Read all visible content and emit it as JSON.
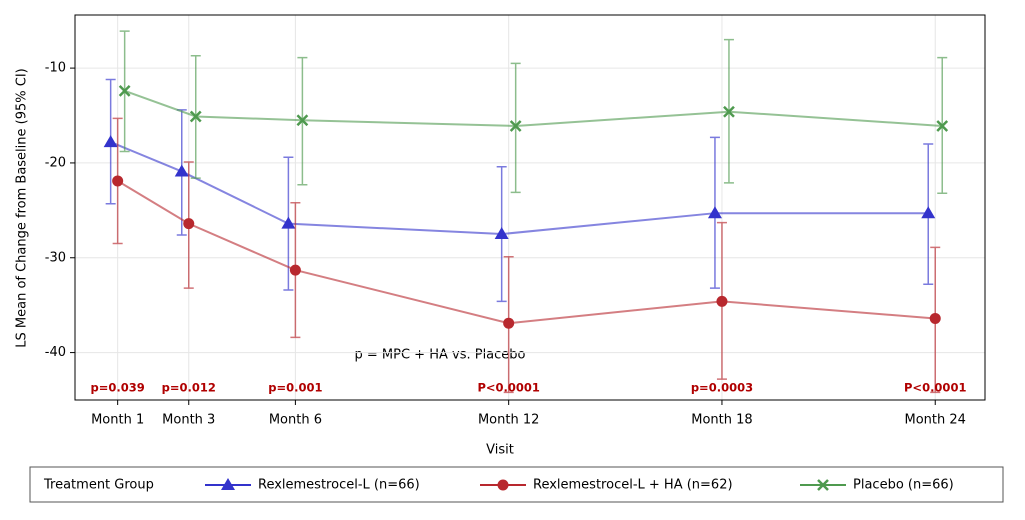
{
  "chart_data": {
    "type": "line",
    "y_label": "LS Mean of Change from Baseline (95% CI)",
    "x_label": "Visit",
    "x": [
      1,
      3,
      6,
      12,
      18,
      24
    ],
    "xlim": [
      -0.2,
      25.4
    ],
    "xticks": [
      {
        "value": 1,
        "label": "Month 1"
      },
      {
        "value": 3,
        "label": "Month 3"
      },
      {
        "value": 6,
        "label": "Month 6"
      },
      {
        "value": 12,
        "label": "Month 12"
      },
      {
        "value": 18,
        "label": "Month 18"
      },
      {
        "value": 24,
        "label": "Month 24"
      }
    ],
    "ylim": [
      -45,
      -4.4
    ],
    "yticks": [
      -10,
      -20,
      -30,
      -40
    ],
    "grid": true,
    "legend_title": "Treatment Group",
    "legend_position": "bottom",
    "series": [
      {
        "name": "Rexlemestrocel-L (n=66)",
        "color": "#3333cc",
        "marker": "triangle",
        "values": [
          -17.8,
          -20.9,
          -26.4,
          -27.5,
          -25.3,
          -25.3
        ],
        "lower": [
          -24.3,
          -27.6,
          -33.4,
          -34.6,
          -33.2,
          -32.8
        ],
        "upper": [
          -11.2,
          -14.4,
          -19.4,
          -20.4,
          -17.3,
          -18.0
        ]
      },
      {
        "name": "Rexlemestrocel-L + HA (n=62)",
        "color": "#b8282e",
        "marker": "circle",
        "values": [
          -21.9,
          -26.4,
          -31.3,
          -36.9,
          -34.6,
          -36.4
        ],
        "lower": [
          -28.5,
          -33.2,
          -38.4,
          -44.2,
          -42.8,
          -44.2
        ],
        "upper": [
          -15.3,
          -19.9,
          -24.2,
          -29.9,
          -26.3,
          -28.9
        ]
      },
      {
        "name": "Placebo (n=66)",
        "color": "#4f9a4f",
        "marker": "x",
        "values": [
          -12.4,
          -15.1,
          -15.5,
          -16.1,
          -14.6,
          -16.1
        ],
        "lower": [
          -18.8,
          -21.6,
          -22.3,
          -23.1,
          -22.1,
          -23.2
        ],
        "upper": [
          -6.1,
          -8.7,
          -8.9,
          -9.5,
          -7.0,
          -8.9
        ]
      }
    ],
    "p_values": [
      "p=0.039",
      "p=0.012",
      "p=0.001",
      "P<0.0001",
      "p=0.0003",
      "P<0.0001"
    ],
    "annotation": "p = MPC + HA vs. Placebo"
  }
}
